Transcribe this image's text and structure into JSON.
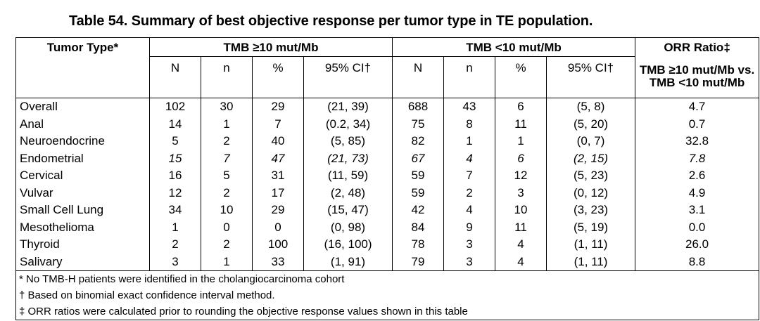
{
  "title": "Table 54. Summary of best objective response per tumor type in TE population.",
  "headers": {
    "tumor_type": "Tumor Type*",
    "group_high": "TMB ≥10 mut/Mb",
    "group_low": "TMB <10 mut/Mb",
    "orr_ratio": "ORR Ratio‡",
    "orr_sub_1": "TMB ≥10 mut/Mb vs.",
    "orr_sub_2": "TMB <10 mut/Mb",
    "N": "N",
    "n": "n",
    "pct": "%",
    "ci": "95% CI†"
  },
  "rows": [
    {
      "type": "Overall",
      "hN": "102",
      "hn": "30",
      "hp": "29",
      "hci": "(21, 39)",
      "lN": "688",
      "ln": "43",
      "lp": "6",
      "lci": "(5, 8)",
      "ratio": "4.7"
    },
    {
      "type": "Anal",
      "hN": "14",
      "hn": "1",
      "hp": "7",
      "hci": "(0.2, 34)",
      "lN": "75",
      "ln": "8",
      "lp": "11",
      "lci": "(5, 20)",
      "ratio": "0.7"
    },
    {
      "type": "Neuroendocrine",
      "hN": "5",
      "hn": "2",
      "hp": "40",
      "hci": "(5, 85)",
      "lN": "82",
      "ln": "1",
      "lp": "1",
      "lci": "(0, 7)",
      "ratio": "32.8"
    },
    {
      "type": "Endometrial",
      "hN": "15",
      "hn": "7",
      "hp": "47",
      "hci": "(21, 73)",
      "lN": "67",
      "ln": "4",
      "lp": "6",
      "lci": "(2, 15)",
      "ratio": "7.8"
    },
    {
      "type": "Cervical",
      "hN": "16",
      "hn": "5",
      "hp": "31",
      "hci": "(11, 59)",
      "lN": "59",
      "ln": "7",
      "lp": "12",
      "lci": "(5, 23)",
      "ratio": "2.6"
    },
    {
      "type": "Vulvar",
      "hN": "12",
      "hn": "2",
      "hp": "17",
      "hci": "(2, 48)",
      "lN": "59",
      "ln": "2",
      "lp": "3",
      "lci": "(0, 12)",
      "ratio": "4.9"
    },
    {
      "type": "Small Cell Lung",
      "hN": "34",
      "hn": "10",
      "hp": "29",
      "hci": "(15, 47)",
      "lN": "42",
      "ln": "4",
      "lp": "10",
      "lci": "(3, 23)",
      "ratio": "3.1"
    },
    {
      "type": "Mesothelioma",
      "hN": "1",
      "hn": "0",
      "hp": "0",
      "hci": "(0, 98)",
      "lN": "84",
      "ln": "9",
      "lp": "11",
      "lci": "(5, 19)",
      "ratio": "0.0"
    },
    {
      "type": "Thyroid",
      "hN": "2",
      "hn": "2",
      "hp": "100",
      "hci": "(16, 100)",
      "lN": "78",
      "ln": "3",
      "lp": "4",
      "lci": "(1, 11)",
      "ratio": "26.0"
    },
    {
      "type": "Salivary",
      "hN": "3",
      "hn": "1",
      "hp": "33",
      "hci": "(1, 91)",
      "lN": "79",
      "ln": "3",
      "lp": "4",
      "lci": "(1, 11)",
      "ratio": "8.8"
    }
  ],
  "footnotes": [
    "* No TMB-H patients were identified in the cholangiocarcinoma cohort",
    "† Based on binomial exact confidence interval method.",
    "‡ ORR ratios were calculated prior to rounding the objective response values shown in this table"
  ]
}
